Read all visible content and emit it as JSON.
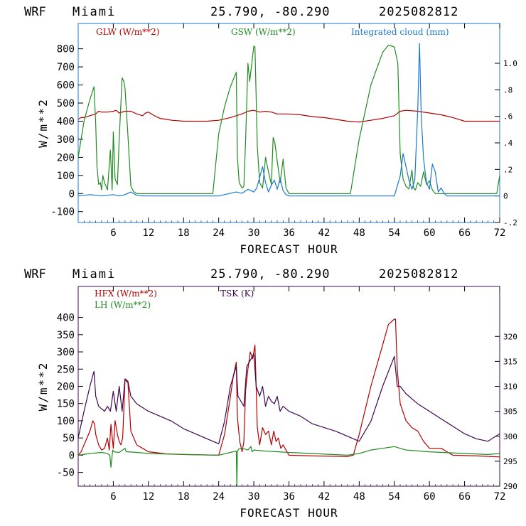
{
  "colors": {
    "glw": "#b40000",
    "gsw": "#228b22",
    "cloud": "#1a78d4",
    "hfx": "#b40000",
    "lh": "#228b22",
    "tsk": "#3c0850",
    "frame_top": "#1a78d4",
    "frame_bottom": "#3c0850"
  },
  "chart_data": [
    {
      "type": "line",
      "header": {
        "model": "WRF",
        "location": "Miami",
        "coords": "25.790, -80.290",
        "init": "2025082812"
      },
      "xlabel": "FORECAST HOUR",
      "ylabel": "W/m**2",
      "xlim": [
        0,
        72
      ],
      "ylim": [
        -160,
        940
      ],
      "y2lim": [
        -0.2,
        1.3
      ],
      "xticks": [
        6,
        12,
        18,
        24,
        30,
        36,
        42,
        48,
        54,
        60,
        66,
        72
      ],
      "yticks": [
        -100,
        0,
        100,
        200,
        300,
        400,
        500,
        600,
        700,
        800
      ],
      "y2ticks": [
        -0.2,
        0,
        0.2,
        0.4,
        0.6,
        0.8,
        1.0
      ],
      "y2ticklabels": [
        "-.2",
        "0",
        ".2",
        ".4",
        ".6",
        ".8",
        "1.0"
      ],
      "legend": [
        "GLW (W/m**2)",
        "GSW (W/m**2)",
        "Integrated cloud (mm)"
      ],
      "series": [
        {
          "name": "GLW (W/m**2)",
          "axis": "left",
          "color_key": "glw",
          "x": [
            0,
            0.5,
            1,
            2,
            3,
            3.5,
            4,
            5,
            6,
            6.5,
            7,
            8,
            9,
            10,
            11,
            11.5,
            12,
            13,
            14,
            15,
            16,
            18,
            20,
            22,
            24,
            26,
            27,
            28,
            29,
            30,
            31,
            32,
            33,
            34,
            35,
            36,
            38,
            40,
            42,
            44,
            46,
            48,
            50,
            52,
            54,
            55,
            56,
            58,
            60,
            62,
            64,
            65,
            66,
            68,
            70,
            72
          ],
          "y": [
            410,
            420,
            420,
            430,
            440,
            455,
            450,
            450,
            455,
            460,
            445,
            455,
            455,
            440,
            430,
            445,
            450,
            430,
            415,
            410,
            405,
            400,
            400,
            400,
            405,
            420,
            430,
            440,
            455,
            460,
            450,
            455,
            450,
            440,
            440,
            440,
            435,
            425,
            420,
            410,
            400,
            395,
            405,
            415,
            430,
            455,
            460,
            455,
            445,
            435,
            420,
            410,
            400,
            400,
            400,
            400
          ]
        },
        {
          "name": "GSW (W/m**2)",
          "axis": "left",
          "color_key": "gsw",
          "x": [
            0,
            1,
            2,
            2.7,
            3,
            3.2,
            3.5,
            3.8,
            4,
            4.2,
            4.5,
            5,
            5.5,
            5.8,
            6,
            6.3,
            6.7,
            7,
            7.5,
            7.8,
            8,
            8.5,
            9,
            9.5,
            10,
            23,
            24,
            25,
            26,
            27,
            27.2,
            27.5,
            28,
            28.3,
            28.6,
            29,
            29.3,
            30,
            30.2,
            30.6,
            31,
            31.5,
            32,
            32.5,
            33,
            33.3,
            33.6,
            34,
            34.5,
            35,
            35.5,
            36,
            46.5,
            48,
            50,
            52,
            53,
            54,
            54.6,
            55,
            55.5,
            56,
            56.5,
            57,
            57.3,
            57.6,
            58,
            58.5,
            59,
            59.5,
            60,
            60.5,
            61,
            71.5,
            72
          ],
          "y": [
            200,
            400,
            520,
            590,
            380,
            150,
            50,
            60,
            20,
            100,
            60,
            20,
            240,
            20,
            340,
            80,
            50,
            300,
            640,
            620,
            580,
            320,
            40,
            10,
            0,
            0,
            330,
            480,
            590,
            670,
            200,
            60,
            30,
            40,
            300,
            720,
            620,
            815,
            810,
            260,
            60,
            30,
            200,
            120,
            50,
            310,
            280,
            180,
            60,
            190,
            30,
            0,
            0,
            300,
            600,
            780,
            820,
            810,
            720,
            220,
            80,
            40,
            25,
            130,
            30,
            20,
            60,
            40,
            120,
            50,
            70,
            20,
            0,
            0,
            100
          ]
        },
        {
          "name": "Integrated cloud (mm)",
          "axis": "right",
          "color_key": "cloud",
          "x": [
            0,
            1,
            2,
            3,
            4,
            5,
            6,
            7,
            8,
            9,
            10,
            11,
            12,
            24,
            26,
            27,
            28,
            29,
            30,
            30.5,
            31,
            31.5,
            32,
            32.5,
            33,
            33.5,
            34,
            34.5,
            35,
            35.5,
            36,
            54,
            55,
            55.5,
            56,
            56.5,
            57,
            57.5,
            58,
            58.3,
            58.6,
            59,
            59.5,
            60,
            60.5,
            61,
            61.5,
            62,
            62.5,
            63,
            72
          ],
          "y": [
            0,
            0.005,
            0.01,
            0.005,
            0,
            0.005,
            0.01,
            0,
            0.01,
            0.03,
            0.005,
            0,
            0,
            0,
            0.02,
            0.03,
            0.02,
            0.05,
            0.03,
            0.06,
            0.14,
            0.22,
            0.1,
            0.03,
            0.08,
            0.12,
            0.05,
            0.13,
            0.04,
            0.01,
            0,
            0,
            0.15,
            0.32,
            0.22,
            0.12,
            0.05,
            0.12,
            0.65,
            1.15,
            0.6,
            0.28,
            0.1,
            0.05,
            0.24,
            0.18,
            0.03,
            0.06,
            0.02,
            0,
            0
          ]
        }
      ]
    },
    {
      "type": "line",
      "header": {
        "model": "WRF",
        "location": "Miami",
        "coords": "25.790, -80.290",
        "init": "2025082812"
      },
      "xlabel": "FORECAST HOUR",
      "ylabel": "W/m**2",
      "xlim": [
        0,
        72
      ],
      "ylim": [
        -90,
        490
      ],
      "y2lim": [
        290,
        330
      ],
      "xticks": [
        6,
        12,
        18,
        24,
        30,
        36,
        42,
        48,
        54,
        60,
        66,
        72
      ],
      "yticks": [
        -50,
        0,
        50,
        100,
        150,
        200,
        250,
        300,
        350,
        400
      ],
      "y2ticks": [
        290,
        295,
        300,
        305,
        310,
        315,
        320
      ],
      "legend": [
        "HFX (W/m**2)",
        "LH  (W/m**2)",
        "TSK (K)"
      ],
      "series": [
        {
          "name": "HFX (W/m**2)",
          "axis": "left",
          "color_key": "hfx",
          "x": [
            0,
            0.5,
            1,
            2,
            2.5,
            2.8,
            3,
            3.5,
            4,
            4.5,
            5,
            5.3,
            5.6,
            6,
            6.3,
            6.7,
            7,
            7.3,
            7.6,
            8,
            8.5,
            9,
            10,
            11,
            12,
            13,
            14,
            15,
            18,
            24,
            25,
            26,
            26.5,
            27,
            27.2,
            27.6,
            28,
            28.3,
            28.6,
            29,
            29.4,
            29.8,
            30.2,
            30.6,
            31,
            31.5,
            32,
            32.5,
            33,
            33.4,
            33.8,
            34.2,
            34.6,
            35,
            35.5,
            36,
            40,
            46,
            47,
            48,
            50,
            52,
            53,
            54,
            54.2,
            54.5,
            55,
            56,
            57,
            58,
            59,
            60,
            61,
            62,
            63,
            64,
            68,
            72
          ],
          "y": [
            0,
            10,
            30,
            70,
            100,
            90,
            60,
            30,
            15,
            20,
            50,
            15,
            90,
            20,
            100,
            60,
            40,
            30,
            50,
            220,
            210,
            70,
            30,
            20,
            10,
            8,
            6,
            4,
            2,
            0,
            60,
            170,
            230,
            270,
            110,
            40,
            10,
            40,
            190,
            250,
            300,
            280,
            320,
            80,
            30,
            80,
            60,
            70,
            30,
            70,
            40,
            50,
            20,
            30,
            15,
            0,
            -2,
            -4,
            0,
            60,
            200,
            320,
            380,
            395,
            395,
            250,
            150,
            100,
            80,
            70,
            40,
            20,
            20,
            20,
            10,
            0,
            -2,
            -5
          ]
        },
        {
          "name": "LH  (W/m**2)",
          "axis": "left",
          "color_key": "lh",
          "x": [
            0,
            2,
            4,
            5,
            5.4,
            5.6,
            5.9,
            6.1,
            7,
            8,
            8.2,
            8.5,
            10,
            12,
            18,
            24,
            26,
            27,
            27.1,
            27.2,
            27.4,
            28,
            29,
            29.5,
            29.7,
            30,
            32,
            36,
            46,
            48,
            50,
            52,
            54,
            55,
            56,
            60,
            66,
            70,
            72
          ],
          "y": [
            0,
            5,
            8,
            5,
            0,
            -35,
            15,
            10,
            8,
            20,
            10,
            10,
            8,
            5,
            2,
            0,
            8,
            12,
            -90,
            10,
            18,
            20,
            15,
            25,
            10,
            15,
            12,
            8,
            0,
            5,
            15,
            20,
            25,
            20,
            15,
            10,
            5,
            2,
            5
          ]
        },
        {
          "name": "TSK (K)",
          "axis": "right",
          "color_key": "tsk",
          "x": [
            0,
            1,
            2,
            2.7,
            3,
            3.5,
            4,
            4.5,
            5,
            5.5,
            6,
            6.5,
            7,
            7.5,
            8,
            8.5,
            9,
            10,
            12,
            14,
            16,
            18,
            20,
            22,
            24,
            25,
            26,
            27,
            27.3,
            27.8,
            28.3,
            28.8,
            29.3,
            30,
            30.4,
            31,
            31.5,
            32,
            32.5,
            33,
            33.5,
            34,
            34.5,
            35,
            36,
            38,
            40,
            44,
            48,
            50,
            52,
            54,
            54.5,
            55,
            56,
            58,
            60,
            62,
            64,
            66,
            68,
            70,
            72
          ],
          "y": [
            299.7,
            305,
            310,
            313,
            308,
            306,
            305.5,
            305,
            306,
            305,
            309,
            305,
            310,
            305,
            311.5,
            311,
            308,
            306.5,
            305,
            304,
            303,
            301.5,
            300.5,
            299.5,
            298.5,
            303,
            310,
            314,
            308,
            307,
            306,
            314,
            315,
            316.5,
            310,
            308,
            310,
            306,
            308,
            307,
            306.5,
            308,
            305,
            306,
            305,
            304,
            302.5,
            301,
            299,
            303,
            310,
            316,
            310,
            310,
            308.5,
            306.5,
            305,
            303.5,
            302,
            300.5,
            299.5,
            299,
            300.5
          ]
        }
      ]
    }
  ]
}
